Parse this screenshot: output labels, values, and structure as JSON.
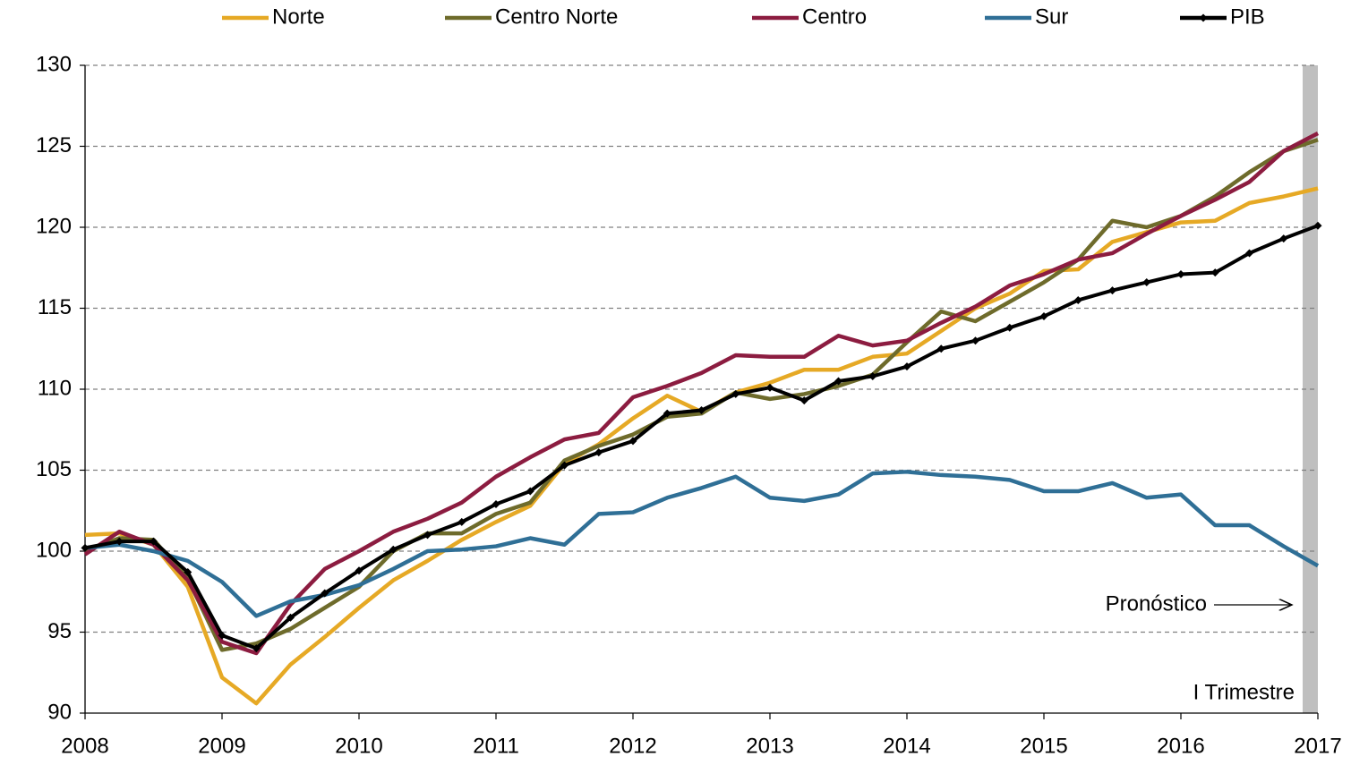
{
  "chart_data": {
    "type": "line",
    "annotations": [
      "Pronóstico",
      "I Trimestre"
    ],
    "x": [
      2008,
      2008.25,
      2008.5,
      2008.75,
      2009,
      2009.25,
      2009.5,
      2009.75,
      2010,
      2010.25,
      2010.5,
      2010.75,
      2011,
      2011.25,
      2011.5,
      2011.75,
      2012,
      2012.25,
      2012.5,
      2012.75,
      2013,
      2013.25,
      2013.5,
      2013.75,
      2014,
      2014.25,
      2014.5,
      2014.75,
      2015,
      2015.25,
      2015.5,
      2015.75,
      2016,
      2016.25,
      2016.5,
      2016.75,
      2017
    ],
    "series": [
      {
        "name": "Norte",
        "color": "#e6a925",
        "values": [
          101.0,
          101.1,
          100.4,
          97.8,
          92.2,
          90.6,
          93.0,
          94.7,
          96.5,
          98.2,
          99.4,
          100.7,
          101.8,
          102.8,
          105.4,
          106.6,
          108.2,
          109.6,
          108.6,
          109.8,
          110.4,
          111.2,
          111.2,
          112.0,
          112.2,
          113.6,
          115.0,
          115.9,
          117.3,
          117.4,
          119.1,
          119.7,
          120.3,
          120.4,
          121.5,
          121.9,
          122.4
        ]
      },
      {
        "name": "Centro Norte",
        "color": "#6e6b2b",
        "values": [
          100.0,
          100.8,
          100.7,
          98.3,
          93.9,
          94.3,
          95.2,
          96.5,
          97.8,
          100.0,
          101.1,
          101.1,
          102.3,
          103.0,
          105.6,
          106.5,
          107.2,
          108.3,
          108.5,
          109.8,
          109.4,
          109.7,
          110.2,
          110.9,
          112.9,
          114.8,
          114.2,
          115.4,
          116.6,
          118.0,
          120.4,
          120.0,
          120.7,
          121.9,
          123.4,
          124.7,
          125.4
        ]
      },
      {
        "name": "Centro",
        "color": "#8c1c40",
        "values": [
          99.8,
          101.2,
          100.4,
          98.2,
          94.4,
          93.7,
          96.7,
          98.9,
          100.0,
          101.2,
          102.0,
          103.0,
          104.6,
          105.8,
          106.9,
          107.3,
          109.5,
          110.2,
          111.0,
          112.1,
          112.0,
          112.0,
          113.3,
          112.7,
          113.0,
          114.1,
          115.1,
          116.4,
          117.1,
          118.0,
          118.4,
          119.6,
          120.7,
          121.7,
          122.8,
          124.7,
          125.8
        ]
      },
      {
        "name": "Sur",
        "color": "#2f6f96",
        "values": [
          100.2,
          100.4,
          100.0,
          99.4,
          98.1,
          96.0,
          96.9,
          97.3,
          97.9,
          98.9,
          100.0,
          100.1,
          100.3,
          100.8,
          100.4,
          102.3,
          102.4,
          103.3,
          103.9,
          104.6,
          103.3,
          103.1,
          103.5,
          104.8,
          104.9,
          104.7,
          104.6,
          104.4,
          103.7,
          103.7,
          104.2,
          103.3,
          103.5,
          101.6,
          101.6,
          100.3,
          99.1
        ]
      },
      {
        "name": "PIB",
        "color": "#000000",
        "marker": "diamond",
        "values": [
          100.2,
          100.6,
          100.6,
          98.7,
          94.8,
          94.0,
          95.9,
          97.4,
          98.8,
          100.1,
          101.0,
          101.8,
          102.9,
          103.7,
          105.3,
          106.1,
          106.8,
          108.5,
          108.7,
          109.7,
          110.1,
          109.3,
          110.5,
          110.8,
          111.4,
          112.5,
          113.0,
          113.8,
          114.5,
          115.5,
          116.1,
          116.6,
          117.1,
          117.2,
          118.4,
          119.3,
          120.1
        ]
      }
    ],
    "xlim": [
      2008,
      2017
    ],
    "xticks": [
      2008,
      2009,
      2010,
      2011,
      2012,
      2013,
      2014,
      2015,
      2016,
      2017
    ],
    "ylim": [
      90,
      130
    ],
    "yticks": [
      90,
      95,
      100,
      105,
      110,
      115,
      120,
      125,
      130
    ],
    "grid": true,
    "legend": "top"
  }
}
